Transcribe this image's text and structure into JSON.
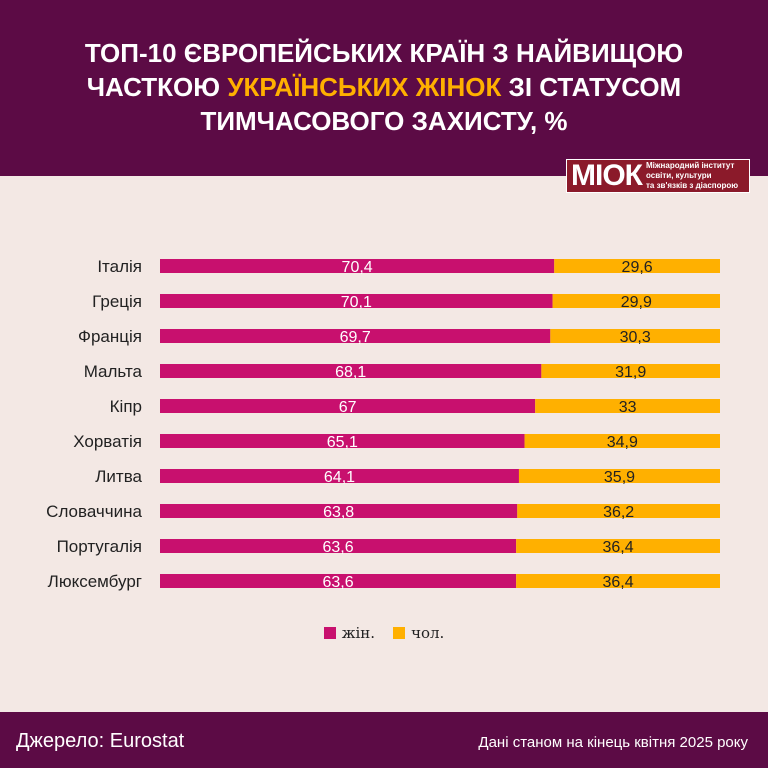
{
  "title": {
    "line1": "ТОП-10 ЄВРОПЕЙСЬКИХ КРАЇН З НАЙВИЩОЮ",
    "line2_pre": "ЧАСТКОЮ ",
    "line2_hl": "УКРАЇНСЬКИХ ЖІНОК",
    "line2_post": " ЗІ СТАТУСОМ",
    "line3": "ТИМЧАСОВОГО ЗАХИСТУ, %"
  },
  "logo": {
    "mark": "МІОК",
    "line1": "Міжнародний інститут",
    "line2": "освіти, культури",
    "line3": "та зв'язків з діаспорою"
  },
  "colors": {
    "header": "#5c0b45",
    "women": "#c8106e",
    "men": "#ffb000",
    "highlight": "#ffb000"
  },
  "chart_data": {
    "type": "bar",
    "orientation": "horizontal",
    "stacked": true,
    "categories": [
      "Італія",
      "Греція",
      "Франція",
      "Мальта",
      "Кіпр",
      "Хорватія",
      "Литва",
      "Словаччина",
      "Португалія",
      "Люксембург"
    ],
    "series": [
      {
        "name": "жін.",
        "values": [
          70.4,
          70.1,
          69.7,
          68.1,
          67,
          65.1,
          64.1,
          63.8,
          63.6,
          63.6
        ],
        "labels": [
          "70,4",
          "70,1",
          "69,7",
          "68,1",
          "67",
          "65,1",
          "64,1",
          "63,8",
          "63,6",
          "63,6"
        ]
      },
      {
        "name": "чол.",
        "values": [
          29.6,
          29.9,
          30.3,
          31.9,
          33,
          34.9,
          35.9,
          36.2,
          36.4,
          36.4
        ],
        "labels": [
          "29,6",
          "29,9",
          "30,3",
          "31,9",
          "33",
          "34,9",
          "35,9",
          "36,2",
          "36,4",
          "36,4"
        ]
      }
    ],
    "xlim": [
      0,
      100
    ],
    "legend": "bottom"
  },
  "footer": {
    "source": "Джерело: Eurostat",
    "date": "Дані станом на кінець квітня 2025 року"
  }
}
